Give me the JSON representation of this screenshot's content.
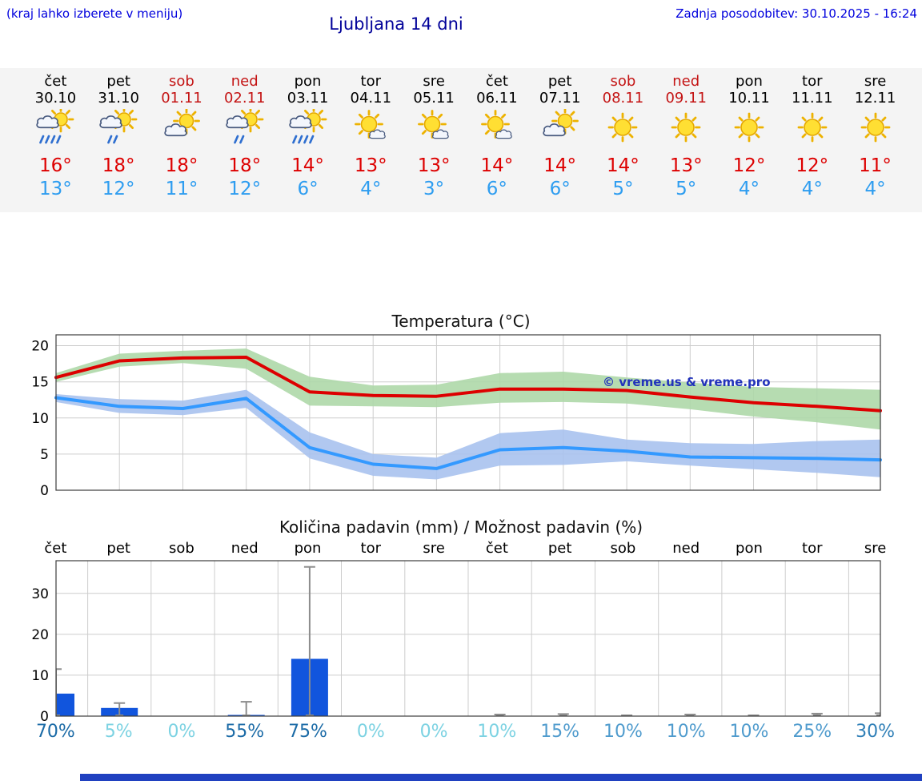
{
  "header": {
    "hint": "(kraj lahko izberete v meniju)",
    "title": "Ljubljana 14 dni",
    "updated": "Zadnja posodobitev: 30.10.2025 - 16:24"
  },
  "colors": {
    "link_blue": "#0000dd",
    "title_blue": "#000099",
    "high_red": "#dd0000",
    "low_blue": "#2e9df0",
    "weekend_red": "#c41414",
    "strip_bg": "#f4f4f4",
    "footer_blue": "#2041c0",
    "watermark": "#2233bb"
  },
  "days": [
    {
      "name": "čet",
      "date": "30.10",
      "weekend": false,
      "icon": "rain",
      "high": "16°",
      "low": "13°"
    },
    {
      "name": "pet",
      "date": "31.10",
      "weekend": false,
      "icon": "showers",
      "high": "18°",
      "low": "12°"
    },
    {
      "name": "sob",
      "date": "01.11",
      "weekend": true,
      "icon": "partly-cloudy",
      "high": "18°",
      "low": "11°"
    },
    {
      "name": "ned",
      "date": "02.11",
      "weekend": true,
      "icon": "showers",
      "high": "18°",
      "low": "12°"
    },
    {
      "name": "pon",
      "date": "03.11",
      "weekend": false,
      "icon": "rain",
      "high": "14°",
      "low": "6°"
    },
    {
      "name": "tor",
      "date": "04.11",
      "weekend": false,
      "icon": "sun-small-cloud",
      "high": "13°",
      "low": "4°"
    },
    {
      "name": "sre",
      "date": "05.11",
      "weekend": false,
      "icon": "sun-small-cloud",
      "high": "13°",
      "low": "3°"
    },
    {
      "name": "čet",
      "date": "06.11",
      "weekend": false,
      "icon": "sun-small-cloud",
      "high": "14°",
      "low": "6°"
    },
    {
      "name": "pet",
      "date": "07.11",
      "weekend": false,
      "icon": "partly-cloudy",
      "high": "14°",
      "low": "6°"
    },
    {
      "name": "sob",
      "date": "08.11",
      "weekend": true,
      "icon": "sunny",
      "high": "14°",
      "low": "5°"
    },
    {
      "name": "ned",
      "date": "09.11",
      "weekend": true,
      "icon": "sunny",
      "high": "13°",
      "low": "5°"
    },
    {
      "name": "pon",
      "date": "10.11",
      "weekend": false,
      "icon": "sunny",
      "high": "12°",
      "low": "4°"
    },
    {
      "name": "tor",
      "date": "11.11",
      "weekend": false,
      "icon": "sunny",
      "high": "12°",
      "low": "4°"
    },
    {
      "name": "sre",
      "date": "12.11",
      "weekend": false,
      "icon": "sunny",
      "high": "11°",
      "low": "4°"
    }
  ],
  "chart_data": [
    {
      "type": "line",
      "title": "Temperatura (°C)",
      "x_labels": [
        "čet",
        "pet",
        "sob",
        "ned",
        "pon",
        "tor",
        "sre",
        "čet",
        "pet",
        "sob",
        "ned",
        "pon",
        "tor",
        "sre"
      ],
      "ylim": [
        0,
        21.5
      ],
      "yticks": [
        0,
        5,
        10,
        15,
        20
      ],
      "grid": true,
      "watermark": "© vreme.us & vreme.pro",
      "series": [
        {
          "name": "max-temperature",
          "color": "#dd0000",
          "values": [
            15.6,
            17.9,
            18.3,
            18.4,
            13.6,
            13.1,
            13.0,
            14.0,
            14.0,
            13.8,
            12.9,
            12.1,
            11.6,
            11.0
          ]
        },
        {
          "name": "min-temperature",
          "color": "#3399ff",
          "values": [
            12.8,
            11.6,
            11.3,
            12.7,
            5.9,
            3.6,
            3.0,
            5.6,
            5.9,
            5.4,
            4.6,
            4.5,
            4.4,
            4.2
          ]
        }
      ],
      "bands": [
        {
          "name": "max-range",
          "color": "#aed8a8",
          "upper": [
            16.2,
            18.9,
            19.3,
            19.6,
            15.7,
            14.5,
            14.6,
            16.2,
            16.4,
            15.6,
            14.9,
            14.3,
            14.1,
            13.9
          ],
          "lower": [
            15.0,
            17.1,
            17.6,
            16.8,
            11.7,
            11.6,
            11.5,
            12.1,
            12.2,
            12.0,
            11.2,
            10.2,
            9.4,
            8.4
          ]
        },
        {
          "name": "min-range",
          "color": "#a8c2ee",
          "upper": [
            13.3,
            12.6,
            12.4,
            13.9,
            8.0,
            5.0,
            4.5,
            7.9,
            8.4,
            7.0,
            6.5,
            6.4,
            6.8,
            7.0
          ],
          "lower": [
            12.2,
            10.7,
            10.4,
            11.4,
            4.4,
            2.0,
            1.5,
            3.4,
            3.5,
            4.0,
            3.4,
            2.9,
            2.4,
            1.8
          ]
        }
      ]
    },
    {
      "type": "bar",
      "title": "Količina padavin (mm) / Možnost padavin (%)",
      "x_labels": [
        "čet",
        "pet",
        "sob",
        "ned",
        "pon",
        "tor",
        "sre",
        "čet",
        "pet",
        "sob",
        "ned",
        "pon",
        "tor",
        "sre"
      ],
      "ylim": [
        0,
        38
      ],
      "yticks": [
        0,
        10,
        20,
        30
      ],
      "grid": true,
      "bar_color": "#1155dd",
      "values": [
        5.5,
        2.0,
        0,
        0.3,
        14.0,
        0,
        0,
        0.1,
        0.1,
        0,
        0.1,
        0,
        0.1,
        0.1
      ],
      "whisker_high": [
        11.5,
        3.2,
        0,
        3.5,
        36.5,
        0,
        0,
        0.4,
        0.5,
        0.2,
        0.4,
        0.2,
        0.6,
        0.7
      ],
      "probabilities": [
        {
          "value": 70,
          "color": "#1a6aa6"
        },
        {
          "value": 5,
          "color": "#7cd2e2"
        },
        {
          "value": 0,
          "color": "#7cd2e2"
        },
        {
          "value": 55,
          "color": "#1a6aa6"
        },
        {
          "value": 75,
          "color": "#1a6aa6"
        },
        {
          "value": 0,
          "color": "#7cd2e2"
        },
        {
          "value": 0,
          "color": "#7cd2e2"
        },
        {
          "value": 10,
          "color": "#7cd2e2"
        },
        {
          "value": 15,
          "color": "#4f9bcd"
        },
        {
          "value": 10,
          "color": "#4f9bcd"
        },
        {
          "value": 10,
          "color": "#4f9bcd"
        },
        {
          "value": 10,
          "color": "#4f9bcd"
        },
        {
          "value": 25,
          "color": "#4f9bcd"
        },
        {
          "value": 30,
          "color": "#2f7fb7"
        }
      ]
    }
  ]
}
